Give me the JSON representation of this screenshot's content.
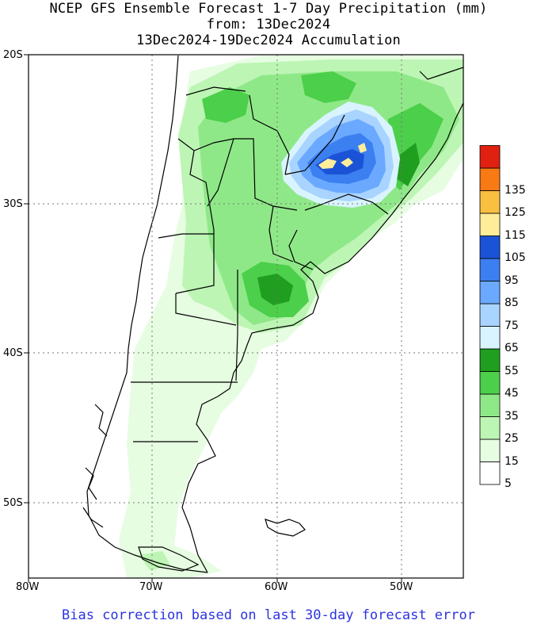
{
  "title": {
    "line1": "NCEP GFS Ensemble Forecast 1-7 Day Precipitation (mm)",
    "line2": "from: 13Dec2024",
    "line3": "13Dec2024-19Dec2024 Accumulation"
  },
  "footer": "Bias correction based on last 30-day forecast error",
  "axes": {
    "lat_labels": [
      "20S",
      "30S",
      "40S",
      "50S"
    ],
    "lon_labels": [
      "80W",
      "70W",
      "60W",
      "50W"
    ],
    "lat_range": [
      -55,
      -20
    ],
    "lon_range": [
      -80,
      -45
    ]
  },
  "legend": {
    "bins": [
      {
        "label": "5",
        "color": "#ffffff"
      },
      {
        "label": "15",
        "color": "#e6fde1"
      },
      {
        "label": "25",
        "color": "#bdf5b4"
      },
      {
        "label": "35",
        "color": "#8fe888"
      },
      {
        "label": "45",
        "color": "#4ccf4a"
      },
      {
        "label": "55",
        "color": "#1f9e1f"
      },
      {
        "label": "65",
        "color": "#d9f4ff"
      },
      {
        "label": "75",
        "color": "#a9d4ff"
      },
      {
        "label": "85",
        "color": "#6aa9ff"
      },
      {
        "label": "95",
        "color": "#3c7ff0"
      },
      {
        "label": "105",
        "color": "#1a53d6"
      },
      {
        "label": "115",
        "color": "#ffed9a"
      },
      {
        "label": "125",
        "color": "#f8bf40"
      },
      {
        "label": "135",
        "color": "#f77a14"
      },
      {
        "label": "",
        "color": "#e02010"
      }
    ]
  }
}
